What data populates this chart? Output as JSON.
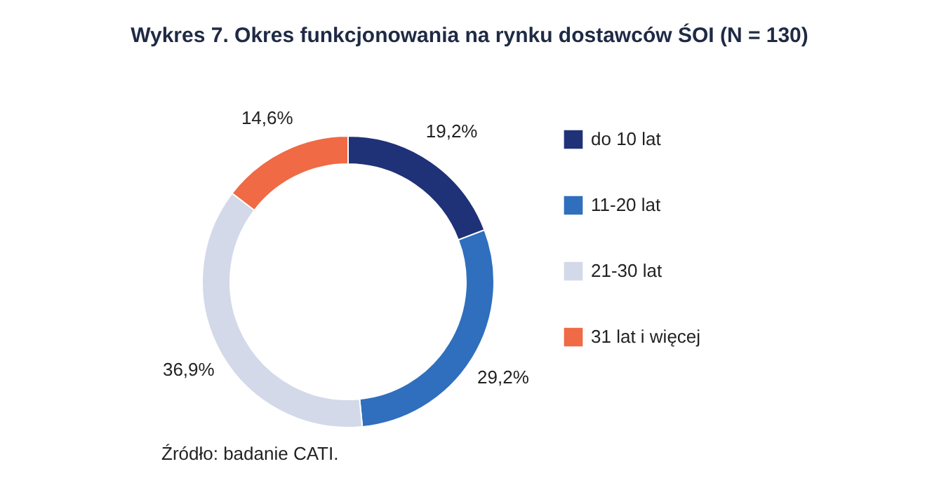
{
  "chart_data": {
    "type": "donut",
    "title": "Wykres 7. Okres funkcjonowania na rynku dostawców ŚOI (N = 130)",
    "categories": [
      "do 10 lat",
      "11-20 lat",
      "21-30 lat",
      "31 lat i więcej"
    ],
    "values": [
      19.2,
      29.2,
      36.9,
      14.6
    ],
    "value_labels": [
      "19,2%",
      "29,2%",
      "36,9%",
      "14,6%"
    ],
    "colors": [
      "#1f3278",
      "#2f6fbd",
      "#d3d9e8",
      "#ef6a45"
    ],
    "legend": "right",
    "annotations": [
      "Źródło: badanie CATI."
    ]
  }
}
